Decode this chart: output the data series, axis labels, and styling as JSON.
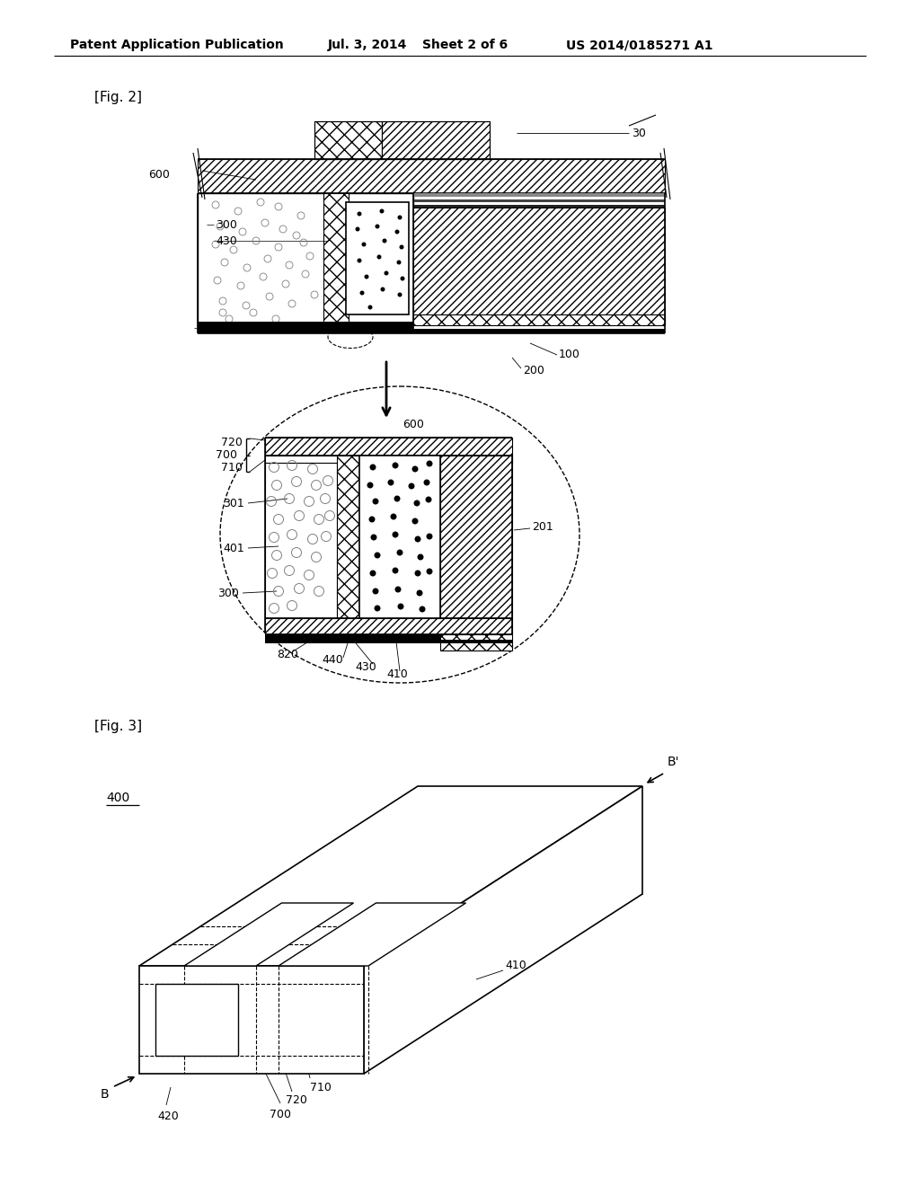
{
  "bg_color": "#ffffff",
  "header_text": "Patent Application Publication",
  "header_date": "Jul. 3, 2014",
  "header_sheet": "Sheet 2 of 6",
  "header_patent": "US 2014/0185271 A1",
  "fig2_label": "[Fig. 2]",
  "fig3_label": "[Fig. 3]"
}
